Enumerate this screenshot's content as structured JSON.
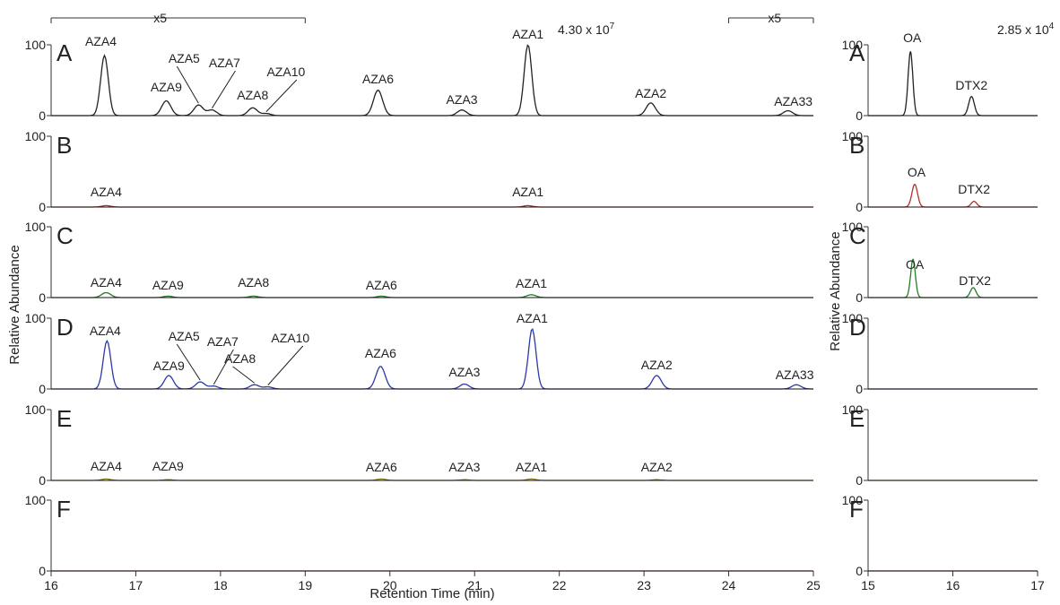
{
  "chart_data": [
    {
      "type": "line",
      "title": "",
      "xlabel": "Retention Time (min)",
      "ylabel": "Relative Abundance",
      "xlim": [
        16,
        25
      ],
      "ylim": [
        0,
        100
      ],
      "x_ticks": [
        "16",
        "17",
        "18",
        "19",
        "20",
        "21",
        "22",
        "23",
        "24",
        "25"
      ],
      "y_ticks": [
        "0",
        "100"
      ],
      "scale_label": "4.30 x 10",
      "scale_exp": "7",
      "zoom_marks": [
        {
          "label": "x5",
          "range": [
            16,
            19
          ]
        },
        {
          "label": "x5",
          "range": [
            24,
            25
          ]
        }
      ],
      "color_hint": [
        "#222222",
        "#b03030",
        "#2a7a2a",
        "#2a3aa8",
        "#8a7a20",
        "#a0306a"
      ],
      "panels": [
        {
          "letter": "A",
          "color": "#222222",
          "peaks": [
            {
              "name": "AZA4",
              "x": 16.63,
              "y": 85
            },
            {
              "name": "AZA9",
              "x": 17.36,
              "y": 21
            },
            {
              "name": "AZA5",
              "x": 17.74,
              "y": 15
            },
            {
              "name": "AZA7",
              "x": 17.9,
              "y": 8
            },
            {
              "name": "AZA8",
              "x": 18.38,
              "y": 11
            },
            {
              "name": "AZA10",
              "x": 18.54,
              "y": 3
            },
            {
              "name": "AZA6",
              "x": 19.86,
              "y": 36
            },
            {
              "name": "AZA3",
              "x": 20.85,
              "y": 8
            },
            {
              "name": "AZA1",
              "x": 21.63,
              "y": 100
            },
            {
              "name": "AZA2",
              "x": 23.08,
              "y": 18
            },
            {
              "name": "AZA33",
              "x": 24.7,
              "y": 7
            }
          ]
        },
        {
          "letter": "B",
          "color": "#b03030",
          "peaks": [
            {
              "name": "AZA4",
              "x": 16.65,
              "y": 2
            },
            {
              "name": "AZA1",
              "x": 21.63,
              "y": 2
            }
          ]
        },
        {
          "letter": "C",
          "color": "#2a7a2a",
          "peaks": [
            {
              "name": "AZA4",
              "x": 16.65,
              "y": 7
            },
            {
              "name": "AZA9",
              "x": 17.38,
              "y": 2
            },
            {
              "name": "AZA8",
              "x": 18.39,
              "y": 2
            },
            {
              "name": "AZA6",
              "x": 19.9,
              "y": 2
            },
            {
              "name": "AZA1",
              "x": 21.67,
              "y": 4
            }
          ]
        },
        {
          "letter": "D",
          "color": "#2a3aa8",
          "peaks": [
            {
              "name": "AZA4",
              "x": 16.66,
              "y": 68
            },
            {
              "name": "AZA9",
              "x": 17.39,
              "y": 19
            },
            {
              "name": "AZA5",
              "x": 17.76,
              "y": 10
            },
            {
              "name": "AZA7",
              "x": 17.92,
              "y": 4
            },
            {
              "name": "AZA8",
              "x": 18.4,
              "y": 6
            },
            {
              "name": "AZA10",
              "x": 18.56,
              "y": 3
            },
            {
              "name": "AZA6",
              "x": 19.89,
              "y": 32
            },
            {
              "name": "AZA3",
              "x": 20.88,
              "y": 7
            },
            {
              "name": "AZA1",
              "x": 21.68,
              "y": 85
            },
            {
              "name": "AZA2",
              "x": 23.15,
              "y": 19
            },
            {
              "name": "AZA33",
              "x": 24.8,
              "y": 6
            }
          ]
        },
        {
          "letter": "E",
          "color": "#8a7a20",
          "peaks": [
            {
              "name": "AZA4",
              "x": 16.65,
              "y": 2
            },
            {
              "name": "AZA9",
              "x": 17.38,
              "y": 1
            },
            {
              "name": "AZA6",
              "x": 19.9,
              "y": 2
            },
            {
              "name": "AZA3",
              "x": 20.88,
              "y": 1
            },
            {
              "name": "AZA1",
              "x": 21.67,
              "y": 2
            },
            {
              "name": "AZA2",
              "x": 23.15,
              "y": 1
            }
          ]
        },
        {
          "letter": "F",
          "color": "#a0306a",
          "peaks": []
        }
      ]
    },
    {
      "type": "line",
      "title": "",
      "xlabel": "",
      "ylabel": "Relative Abundance",
      "xlim": [
        15,
        17
      ],
      "ylim": [
        0,
        100
      ],
      "x_ticks": [
        "15",
        "16",
        "17"
      ],
      "y_ticks": [
        "0",
        "100"
      ],
      "scale_label": "2.85 x 10",
      "scale_exp": "4",
      "panels": [
        {
          "letter": "A",
          "color": "#222222",
          "peaks": [
            {
              "name": "OA",
              "x": 15.5,
              "y": 90
            },
            {
              "name": "DTX2",
              "x": 16.22,
              "y": 27
            }
          ]
        },
        {
          "letter": "B",
          "color": "#b03030",
          "peaks": [
            {
              "name": "OA",
              "x": 15.55,
              "y": 32
            },
            {
              "name": "DTX2",
              "x": 16.25,
              "y": 8
            }
          ]
        },
        {
          "letter": "C",
          "color": "#2a7a2a",
          "peaks": [
            {
              "name": "OA",
              "x": 15.53,
              "y": 54
            },
            {
              "name": "DTX2",
              "x": 16.24,
              "y": 14
            }
          ]
        },
        {
          "letter": "D",
          "color": "#2a3aa8",
          "peaks": []
        },
        {
          "letter": "E",
          "color": "#8a7a20",
          "peaks": []
        },
        {
          "letter": "F",
          "color": "#a0306a",
          "peaks": []
        }
      ]
    }
  ]
}
